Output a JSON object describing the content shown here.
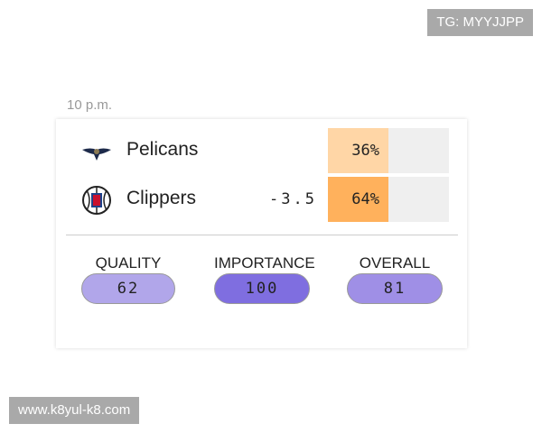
{
  "game": {
    "time": "10 p.m.",
    "teams": [
      {
        "name": "Pelicans",
        "spread": "",
        "win_prob": "36%",
        "color": "#ffd6a6",
        "logo": "pelicans-logo"
      },
      {
        "name": "Clippers",
        "spread": "-3.5",
        "win_prob": "64%",
        "color": "#ffb15c",
        "logo": "clippers-logo"
      }
    ],
    "metrics": [
      {
        "label": "QUALITY",
        "value": "62",
        "color": "#b1a6ea"
      },
      {
        "label": "IMPORTANCE",
        "value": "100",
        "color": "#7f6ee0"
      },
      {
        "label": "OVERALL",
        "value": "81",
        "color": "#9f8fe6"
      }
    ]
  },
  "watermarks": {
    "top": "TG: MYYJJPP",
    "bottom": "www.k8yul-k8.com"
  }
}
